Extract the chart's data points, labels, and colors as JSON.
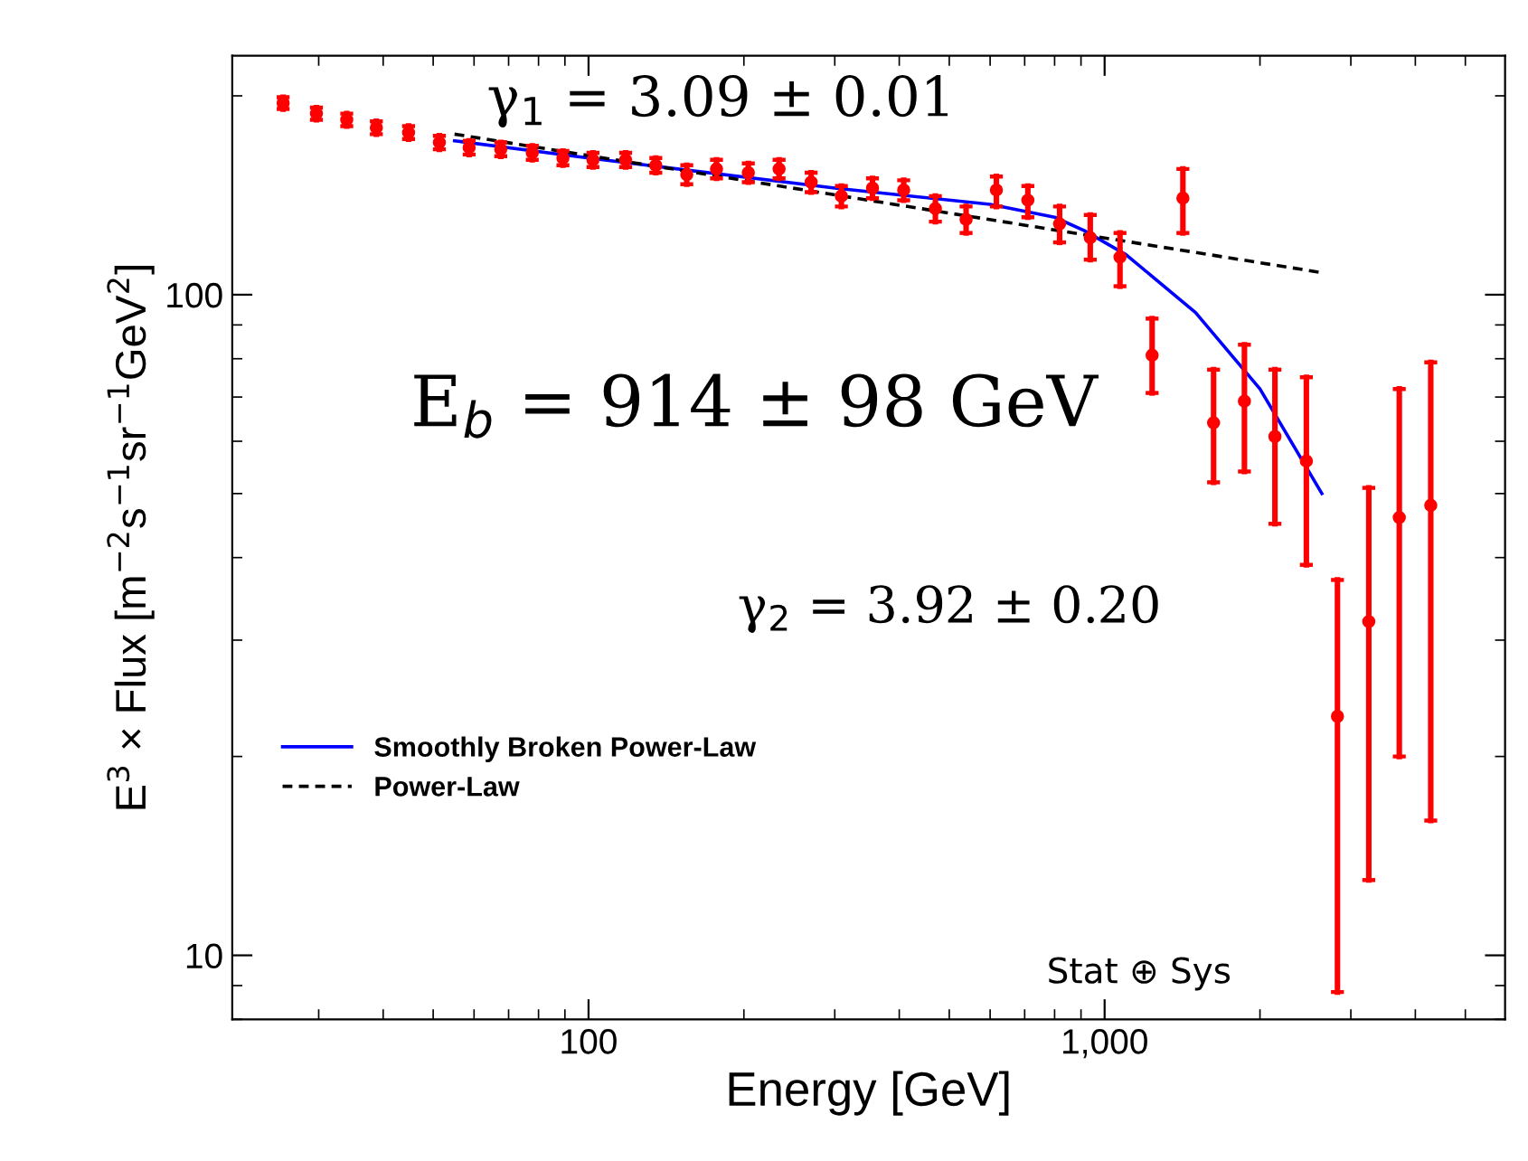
{
  "chart_data": {
    "type": "scatter",
    "xlabel": "Energy [GeV]",
    "ylabel": "E$^{3}$ × Flux [m$^{−2}$s$^{−1}$sr$^{−1}$GeV$^{2}$]",
    "log": "xy",
    "xlim": [
      20.4,
      5970
    ],
    "ylim": [
      8,
      230
    ],
    "xticks": [
      100,
      {
        "value": 1000,
        "label": "1,000"
      }
    ],
    "yticks": [
      10,
      100
    ],
    "grid": false,
    "legend": "bottom left",
    "marker": "circle",
    "series": [
      {
        "color": "#ff0000",
        "x": [
          25.6,
          29.7,
          34,
          38.8,
          44.8,
          51.4,
          58.7,
          67.6,
          77.8,
          89.2,
          102,
          118,
          135,
          155,
          177,
          204,
          234,
          270,
          309,
          355,
          408,
          470,
          539,
          617,
          710,
          818,
          938,
          1071,
          1236,
          1418,
          1626,
          1866,
          2138,
          2460,
          2826,
          3250,
          3724,
          4285
        ],
        "values": [
          195,
          188,
          184,
          179,
          176,
          170,
          167,
          166,
          164,
          161,
          160,
          160,
          157,
          152,
          155,
          153,
          155,
          148,
          141,
          145,
          144,
          135,
          130,
          144,
          139,
          128,
          122,
          114,
          81,
          140,
          64,
          69,
          61,
          56,
          23,
          32,
          46,
          48
        ],
        "errors": [
          4,
          4,
          4,
          4,
          4,
          4,
          4,
          4,
          4,
          4,
          4,
          4,
          4,
          5,
          5,
          5,
          5,
          5,
          5,
          5,
          5,
          6,
          6,
          [
            136,
            151
          ],
          [
            131,
            146
          ],
          [
            120,
            136
          ],
          [
            113,
            132
          ],
          [
            103,
            124
          ],
          [
            71,
            92
          ],
          [
            124,
            155
          ],
          [
            52,
            77
          ],
          [
            54,
            84
          ],
          [
            45,
            77
          ],
          [
            39,
            75
          ],
          [
            8.8,
            37
          ],
          [
            13,
            51
          ],
          [
            20,
            72
          ],
          [
            16,
            79
          ]
        ]
      },
      {
        "type": "line",
        "name": "Smoothly Broken Power-Law",
        "color": "#0000ff",
        "line_style": "solid",
        "marker": "none",
        "x": [
          55,
          100,
          300,
          600,
          800,
          914,
          1100,
          1500,
          2000,
          2636
        ],
        "values": [
          171,
          161,
          145,
          137,
          131,
          125,
          115,
          94,
          72,
          50
        ]
      },
      {
        "type": "line",
        "name": "Power-Law",
        "color": "#000000",
        "line_style": "dashed",
        "marker": "none",
        "x": [
          55,
          2636
        ],
        "values": [
          175,
          108
        ]
      }
    ],
    "annotations": [
      "γ$_{1}$ = 3.09 ± 0.01",
      "E$_{b}$ = 914 ± 98 GeV",
      "γ$_{2}$ = 3.92 ± 0.20",
      "Stat ⊕ Sys"
    ]
  }
}
